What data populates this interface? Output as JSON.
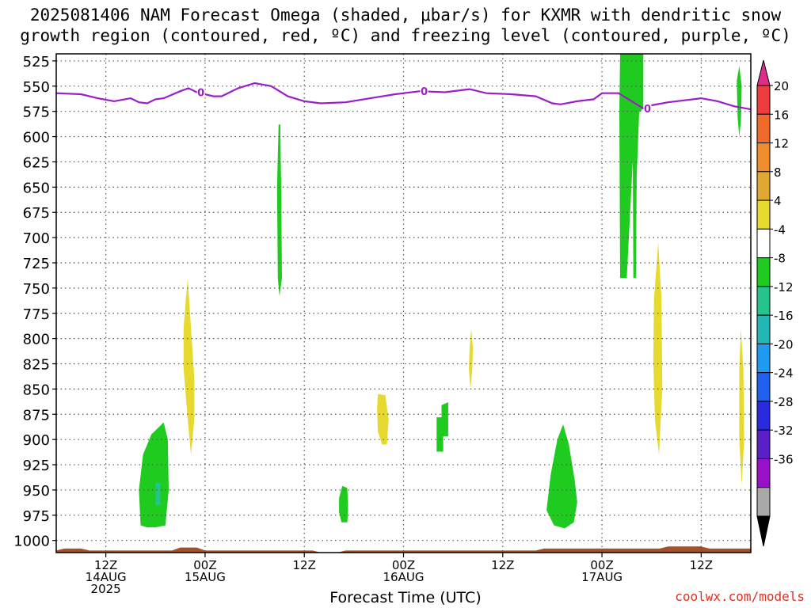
{
  "title_line1": "2025081406 NAM Forecast Omega (shaded, μbar/s) for KXMR with dendritic snow",
  "title_line2": "growth region (contoured, red, ºC) and freezing level (contoured, purple, ºC)",
  "credit": "coolwx.com/models",
  "chart_data": {
    "type": "heatmap",
    "xlabel": "Forecast Time (UTC)",
    "ylabel": "",
    "y_ticks": [
      525,
      550,
      575,
      600,
      625,
      650,
      675,
      700,
      725,
      750,
      775,
      800,
      825,
      850,
      875,
      900,
      925,
      950,
      975,
      1000
    ],
    "x_ticks": [
      {
        "hour": 6,
        "lines": [
          "12Z",
          "14AUG",
          "2025"
        ]
      },
      {
        "hour": 18,
        "lines": [
          "00Z",
          "15AUG"
        ]
      },
      {
        "hour": 30,
        "lines": [
          "12Z"
        ]
      },
      {
        "hour": 42,
        "lines": [
          "00Z",
          "16AUG"
        ]
      },
      {
        "hour": 54,
        "lines": [
          "12Z"
        ]
      },
      {
        "hour": 66,
        "lines": [
          "00Z",
          "17AUG"
        ]
      },
      {
        "hour": 78,
        "lines": [
          "12Z"
        ]
      }
    ],
    "x_range_hours": [
      0,
      84
    ],
    "y_range_mb": [
      518,
      1012
    ],
    "colorbar": {
      "labels": [
        "20",
        "16",
        "12",
        "8",
        "4",
        "-4",
        "-8",
        "-12",
        "-16",
        "-20",
        "-24",
        "-28",
        "-32",
        "-36"
      ],
      "colors": [
        "#dd2e8a",
        "#f03c3c",
        "#f06b2a",
        "#f08c2a",
        "#e0a830",
        "#e6da30",
        "#ffffff",
        "#1ecb1e",
        "#24c48a",
        "#22b6b4",
        "#1e9af0",
        "#1e60f0",
        "#2a2ae0",
        "#5a20c8",
        "#9a10c8",
        "#a9a9a9",
        "#000000"
      ]
    },
    "freezing_level": {
      "label": "0",
      "color": "#9b1fc9",
      "points": [
        [
          0,
          557
        ],
        [
          3,
          558
        ],
        [
          5,
          562
        ],
        [
          7,
          565
        ],
        [
          9,
          562
        ],
        [
          10,
          566
        ],
        [
          11,
          567
        ],
        [
          12,
          563
        ],
        [
          13,
          562
        ],
        [
          15,
          555
        ],
        [
          16,
          552
        ],
        [
          17,
          556
        ],
        [
          19,
          560
        ],
        [
          20,
          560
        ],
        [
          22,
          552
        ],
        [
          24,
          547
        ],
        [
          26,
          550
        ],
        [
          28,
          560
        ],
        [
          30,
          565
        ],
        [
          32,
          567
        ],
        [
          35,
          566
        ],
        [
          38,
          562
        ],
        [
          41,
          558
        ],
        [
          44,
          555
        ],
        [
          47,
          556
        ],
        [
          50,
          553
        ],
        [
          52,
          557
        ],
        [
          55,
          558
        ],
        [
          58,
          560
        ],
        [
          60,
          567
        ],
        [
          61,
          568
        ],
        [
          63,
          565
        ],
        [
          65,
          563
        ],
        [
          66,
          557
        ],
        [
          68,
          557
        ],
        [
          70,
          567
        ],
        [
          71,
          572
        ],
        [
          72,
          569
        ],
        [
          74,
          566
        ],
        [
          76,
          564
        ],
        [
          78,
          562
        ],
        [
          80,
          565
        ],
        [
          82,
          570
        ],
        [
          84,
          573
        ]
      ]
    },
    "omega_areas": [
      {
        "value": -6,
        "color": "#1ecb1e",
        "points": [
          [
            68.2,
            518
          ],
          [
            71,
            518
          ],
          [
            71,
            572
          ],
          [
            70,
            580
          ],
          [
            69,
            740
          ],
          [
            68.2,
            740
          ],
          [
            68.1,
            575
          ]
        ]
      },
      {
        "value": -6,
        "color": "#1ecb1e",
        "points": [
          [
            69.7,
            575
          ],
          [
            70.5,
            575
          ],
          [
            70.2,
            640
          ],
          [
            70.1,
            740
          ],
          [
            69.8,
            740
          ]
        ]
      },
      {
        "value": -6,
        "color": "#1ecb1e",
        "points": [
          [
            26.9,
            588
          ],
          [
            27.1,
            588
          ],
          [
            27.2,
            650
          ],
          [
            27.3,
            740
          ],
          [
            27.0,
            758
          ],
          [
            26.8,
            740
          ],
          [
            26.7,
            650
          ]
        ]
      },
      {
        "value": -6,
        "color": "#1ecb1e",
        "points": [
          [
            10.2,
            985
          ],
          [
            10.0,
            950
          ],
          [
            10.5,
            915
          ],
          [
            11.5,
            895
          ],
          [
            13,
            883
          ],
          [
            13.5,
            900
          ],
          [
            13.6,
            950
          ],
          [
            13.2,
            985
          ],
          [
            12,
            987
          ],
          [
            11,
            987
          ]
        ]
      },
      {
        "value": -10,
        "color": "#24c48a",
        "points": [
          [
            12.0,
            943
          ],
          [
            12.6,
            943
          ],
          [
            12.6,
            965
          ],
          [
            12.0,
            965
          ]
        ]
      },
      {
        "value": -6,
        "color": "#1ecb1e",
        "points": [
          [
            34.2,
            958
          ],
          [
            34.6,
            946
          ],
          [
            35.2,
            948
          ],
          [
            35.3,
            970
          ],
          [
            35.2,
            982
          ],
          [
            34.5,
            982
          ],
          [
            34.2,
            972
          ]
        ]
      },
      {
        "value": -6,
        "color": "#1ecb1e",
        "points": [
          [
            46.0,
            878
          ],
          [
            46.6,
            878
          ],
          [
            46.6,
            866
          ],
          [
            47.4,
            863
          ],
          [
            47.4,
            897
          ],
          [
            46.8,
            897
          ],
          [
            46.8,
            912
          ],
          [
            46.0,
            912
          ]
        ]
      },
      {
        "value": -6,
        "color": "#1ecb1e",
        "points": [
          [
            59.3,
            970
          ],
          [
            59.8,
            935
          ],
          [
            60.6,
            900
          ],
          [
            61.3,
            885
          ],
          [
            62.0,
            905
          ],
          [
            62.7,
            940
          ],
          [
            63.0,
            962
          ],
          [
            62.6,
            982
          ],
          [
            61.5,
            988
          ],
          [
            60.2,
            985
          ]
        ]
      },
      {
        "value": 6,
        "color": "#e6da30",
        "points": [
          [
            15.4,
            790
          ],
          [
            15.6,
            768
          ],
          [
            15.9,
            740
          ],
          [
            16.3,
            790
          ],
          [
            16.7,
            840
          ],
          [
            16.7,
            880
          ],
          [
            16.3,
            915
          ],
          [
            15.9,
            880
          ],
          [
            15.4,
            830
          ]
        ]
      },
      {
        "value": 6,
        "color": "#e6da30",
        "points": [
          [
            38.8,
            870
          ],
          [
            38.9,
            855
          ],
          [
            39.8,
            856
          ],
          [
            40.2,
            880
          ],
          [
            40.0,
            905
          ],
          [
            39.4,
            905
          ],
          [
            38.9,
            892
          ]
        ]
      },
      {
        "value": 6,
        "color": "#e6da30",
        "points": [
          [
            50.0,
            808
          ],
          [
            50.2,
            790
          ],
          [
            50.4,
            810
          ],
          [
            50.3,
            832
          ],
          [
            50.1,
            850
          ],
          [
            49.9,
            830
          ]
        ]
      },
      {
        "value": 6,
        "color": "#e6da30",
        "points": [
          [
            72.3,
            760
          ],
          [
            72.8,
            705
          ],
          [
            73.2,
            760
          ],
          [
            73.3,
            850
          ],
          [
            72.9,
            915
          ],
          [
            72.4,
            880
          ],
          [
            72.2,
            820
          ]
        ]
      },
      {
        "value": 6,
        "color": "#e6da30",
        "points": [
          [
            82.6,
            830
          ],
          [
            82.8,
            790
          ],
          [
            83.1,
            830
          ],
          [
            83.2,
            900
          ],
          [
            82.9,
            945
          ],
          [
            82.6,
            900
          ]
        ]
      },
      {
        "value": -6,
        "color": "#1ecb1e",
        "points": [
          [
            82.3,
            545
          ],
          [
            82.6,
            530
          ],
          [
            82.9,
            550
          ],
          [
            82.8,
            585
          ],
          [
            82.6,
            600
          ],
          [
            82.4,
            580
          ]
        ]
      }
    ],
    "ground": {
      "color": "#a0522d",
      "points": [
        [
          0,
          1010
        ],
        [
          1,
          1008
        ],
        [
          3,
          1008
        ],
        [
          4,
          1010
        ],
        [
          14,
          1010
        ],
        [
          15,
          1007
        ],
        [
          17,
          1007
        ],
        [
          18,
          1010
        ],
        [
          31,
          1010
        ],
        [
          32,
          1012
        ],
        [
          34,
          1012
        ],
        [
          35,
          1010
        ],
        [
          58,
          1010
        ],
        [
          59,
          1008
        ],
        [
          73,
          1008
        ],
        [
          74,
          1006
        ],
        [
          78,
          1006
        ],
        [
          79,
          1008
        ],
        [
          84,
          1008
        ]
      ]
    }
  }
}
